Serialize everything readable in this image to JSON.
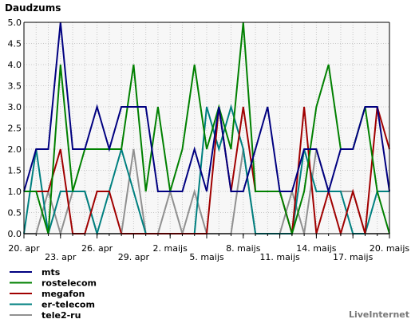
{
  "chart_data": {
    "type": "line",
    "title": "Daudzums",
    "xlabel": "",
    "ylabel": "",
    "ylim": [
      0,
      5
    ],
    "y_ticks": [
      "0.0",
      "0.5",
      "1.0",
      "1.5",
      "2.0",
      "2.5",
      "3.0",
      "3.5",
      "4.0",
      "4.5",
      "5.0"
    ],
    "x_tick_labels": [
      "20. apr",
      "23. apr",
      "26. apr",
      "29. apr",
      "2. maijs",
      "5. maijs",
      "8. maijs",
      "11. maijs",
      "14. maijs",
      "17. maijs",
      "20. maijs"
    ],
    "x_tick_days": [
      0,
      3,
      6,
      9,
      12,
      15,
      18,
      21,
      24,
      27,
      30
    ],
    "grid": true,
    "legend_position": "bottom-left",
    "series": [
      {
        "name": "mts",
        "color": "#000080",
        "points": [
          [
            0,
            1
          ],
          [
            1,
            2
          ],
          [
            2,
            2
          ],
          [
            3,
            5
          ],
          [
            4,
            2
          ],
          [
            5,
            2
          ],
          [
            6,
            3
          ],
          [
            7,
            2
          ],
          [
            8,
            3
          ],
          [
            9,
            3
          ],
          [
            10,
            3
          ],
          [
            11,
            1
          ],
          [
            12,
            1
          ],
          [
            13,
            1
          ],
          [
            14,
            2
          ],
          [
            15,
            1
          ],
          [
            16,
            3
          ],
          [
            17,
            1
          ],
          [
            18,
            1
          ],
          [
            19,
            2
          ],
          [
            20,
            3
          ],
          [
            21,
            1
          ],
          [
            22,
            1
          ],
          [
            23,
            2
          ],
          [
            24,
            2
          ],
          [
            25,
            1
          ],
          [
            26,
            2
          ],
          [
            27,
            2
          ],
          [
            28,
            3
          ],
          [
            29,
            3
          ],
          [
            30,
            1
          ]
        ]
      },
      {
        "name": "rostelecom",
        "color": "#008000",
        "points": [
          [
            0,
            1
          ],
          [
            1,
            1
          ],
          [
            2,
            0
          ],
          [
            3,
            4
          ],
          [
            4,
            1
          ],
          [
            5,
            2
          ],
          [
            6,
            2
          ],
          [
            7,
            2
          ],
          [
            8,
            2
          ],
          [
            9,
            4
          ],
          [
            10,
            1
          ],
          [
            11,
            3
          ],
          [
            12,
            1
          ],
          [
            13,
            2
          ],
          [
            14,
            4
          ],
          [
            15,
            2
          ],
          [
            16,
            3
          ],
          [
            17,
            2
          ],
          [
            18,
            5
          ],
          [
            19,
            1
          ],
          [
            20,
            1
          ],
          [
            21,
            1
          ],
          [
            22,
            0
          ],
          [
            23,
            1
          ],
          [
            24,
            3
          ],
          [
            25,
            4
          ],
          [
            26,
            2
          ],
          [
            27,
            2
          ],
          [
            28,
            3
          ],
          [
            29,
            1
          ],
          [
            30,
            0
          ]
        ]
      },
      {
        "name": "megafon",
        "color": "#a00000",
        "points": [
          [
            0,
            1
          ],
          [
            1,
            1
          ],
          [
            2,
            1
          ],
          [
            3,
            2
          ],
          [
            4,
            0
          ],
          [
            5,
            0
          ],
          [
            6,
            1
          ],
          [
            7,
            1
          ],
          [
            8,
            0
          ],
          [
            9,
            0
          ],
          [
            10,
            0
          ],
          [
            11,
            0
          ],
          [
            12,
            0
          ],
          [
            13,
            0
          ],
          [
            14,
            0
          ],
          [
            15,
            0
          ],
          [
            16,
            3
          ],
          [
            17,
            1
          ],
          [
            18,
            3
          ],
          [
            19,
            1
          ],
          [
            20,
            1
          ],
          [
            21,
            1
          ],
          [
            22,
            0
          ],
          [
            23,
            3
          ],
          [
            24,
            0
          ],
          [
            25,
            1
          ],
          [
            26,
            0
          ],
          [
            27,
            1
          ],
          [
            28,
            0
          ],
          [
            29,
            3
          ],
          [
            30,
            2
          ]
        ]
      },
      {
        "name": "er-telecom",
        "color": "#008080",
        "points": [
          [
            0,
            0
          ],
          [
            1,
            2
          ],
          [
            2,
            0
          ],
          [
            3,
            1
          ],
          [
            4,
            1
          ],
          [
            5,
            1
          ],
          [
            6,
            0
          ],
          [
            7,
            1
          ],
          [
            8,
            2
          ],
          [
            9,
            1
          ],
          [
            10,
            0
          ],
          [
            11,
            0
          ],
          [
            12,
            0
          ],
          [
            13,
            0
          ],
          [
            14,
            0
          ],
          [
            15,
            3
          ],
          [
            16,
            2
          ],
          [
            17,
            3
          ],
          [
            18,
            2
          ],
          [
            19,
            0
          ],
          [
            20,
            0
          ],
          [
            21,
            0
          ],
          [
            22,
            0
          ],
          [
            23,
            2
          ],
          [
            24,
            1
          ],
          [
            25,
            1
          ],
          [
            26,
            1
          ],
          [
            27,
            0
          ],
          [
            28,
            0
          ],
          [
            29,
            1
          ],
          [
            30,
            1
          ]
        ]
      },
      {
        "name": "tele2-ru",
        "color": "#909090",
        "points": [
          [
            0,
            0
          ],
          [
            1,
            0
          ],
          [
            2,
            1
          ],
          [
            3,
            0
          ],
          [
            4,
            1
          ],
          [
            5,
            1
          ],
          [
            6,
            0
          ],
          [
            7,
            0
          ],
          [
            8,
            0
          ],
          [
            9,
            2
          ],
          [
            10,
            0
          ],
          [
            11,
            0
          ],
          [
            12,
            1
          ],
          [
            13,
            0
          ],
          [
            14,
            1
          ],
          [
            15,
            0
          ],
          [
            16,
            0
          ],
          [
            17,
            0
          ],
          [
            18,
            2
          ],
          [
            19,
            0
          ],
          [
            20,
            0
          ],
          [
            21,
            0
          ],
          [
            22,
            1
          ],
          [
            23,
            0
          ],
          [
            24,
            2
          ],
          [
            25,
            1
          ],
          [
            26,
            1
          ],
          [
            27,
            1
          ],
          [
            28,
            0
          ],
          [
            29,
            0
          ],
          [
            30,
            0
          ]
        ]
      }
    ]
  },
  "watermark": "LiveInternet"
}
